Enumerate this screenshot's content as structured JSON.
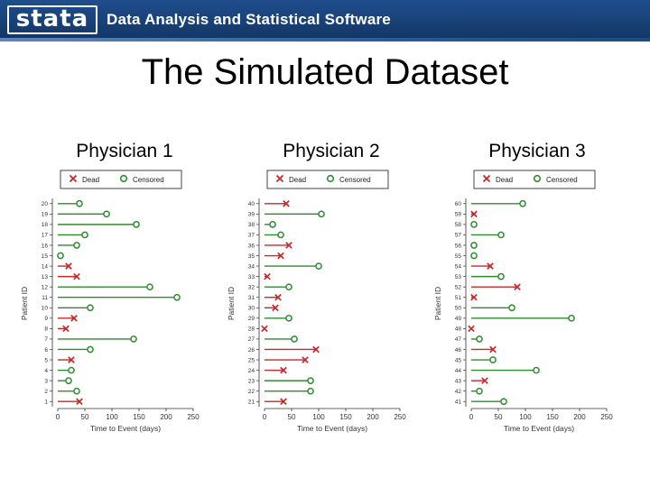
{
  "header": {
    "logo_text": "stata",
    "tagline": "Data Analysis and Statistical Software",
    "background": "#1f4e8c"
  },
  "slide": {
    "title": "The Simulated Dataset"
  },
  "colors": {
    "dead": "#c62828",
    "censored": "#2e8b2e"
  },
  "chart_data": [
    {
      "type": "scatter",
      "title": "Physician 1",
      "xlabel": "Time to Event (days)",
      "ylabel": "Patient ID",
      "xlim": [
        0,
        250
      ],
      "xticks": [
        0,
        50,
        100,
        150,
        200,
        250
      ],
      "legend": [
        "Dead",
        "Censored"
      ],
      "legend_position": "top",
      "patients": [
        {
          "id": "20",
          "time": 40,
          "status": "Censored"
        },
        {
          "id": "19",
          "time": 90,
          "status": "Censored"
        },
        {
          "id": "18",
          "time": 145,
          "status": "Censored"
        },
        {
          "id": "17",
          "time": 50,
          "status": "Censored"
        },
        {
          "id": "16",
          "time": 35,
          "status": "Censored"
        },
        {
          "id": "15",
          "time": 5,
          "status": "Censored"
        },
        {
          "id": "14",
          "time": 20,
          "status": "Dead"
        },
        {
          "id": "13",
          "time": 35,
          "status": "Dead"
        },
        {
          "id": "12",
          "time": 170,
          "status": "Censored"
        },
        {
          "id": "11",
          "time": 220,
          "status": "Censored"
        },
        {
          "id": "10",
          "time": 60,
          "status": "Censored"
        },
        {
          "id": "9",
          "time": 30,
          "status": "Dead"
        },
        {
          "id": "8",
          "time": 15,
          "status": "Dead"
        },
        {
          "id": "7",
          "time": 140,
          "status": "Censored"
        },
        {
          "id": "6",
          "time": 60,
          "status": "Censored"
        },
        {
          "id": "5",
          "time": 25,
          "status": "Dead"
        },
        {
          "id": "4",
          "time": 25,
          "status": "Censored"
        },
        {
          "id": "3",
          "time": 20,
          "status": "Censored"
        },
        {
          "id": "2",
          "time": 35,
          "status": "Censored"
        },
        {
          "id": "1",
          "time": 40,
          "status": "Dead"
        }
      ]
    },
    {
      "type": "scatter",
      "title": "Physician 2",
      "xlabel": "Time to Event (days)",
      "ylabel": "Patient ID",
      "xlim": [
        0,
        250
      ],
      "xticks": [
        0,
        50,
        100,
        150,
        200,
        250
      ],
      "legend": [
        "Dead",
        "Censored"
      ],
      "legend_position": "top",
      "patients": [
        {
          "id": "40",
          "time": 40,
          "status": "Dead"
        },
        {
          "id": "39",
          "time": 105,
          "status": "Censored"
        },
        {
          "id": "38",
          "time": 15,
          "status": "Censored"
        },
        {
          "id": "37",
          "time": 30,
          "status": "Censored"
        },
        {
          "id": "36",
          "time": 45,
          "status": "Dead"
        },
        {
          "id": "35",
          "time": 30,
          "status": "Dead"
        },
        {
          "id": "34",
          "time": 100,
          "status": "Censored"
        },
        {
          "id": "33",
          "time": 5,
          "status": "Dead"
        },
        {
          "id": "32",
          "time": 45,
          "status": "Censored"
        },
        {
          "id": "31",
          "time": 25,
          "status": "Dead"
        },
        {
          "id": "30",
          "time": 20,
          "status": "Dead"
        },
        {
          "id": "29",
          "time": 45,
          "status": "Censored"
        },
        {
          "id": "28",
          "time": 0,
          "status": "Dead"
        },
        {
          "id": "27",
          "time": 55,
          "status": "Censored"
        },
        {
          "id": "26",
          "time": 95,
          "status": "Dead"
        },
        {
          "id": "25",
          "time": 75,
          "status": "Dead"
        },
        {
          "id": "24",
          "time": 35,
          "status": "Dead"
        },
        {
          "id": "23",
          "time": 85,
          "status": "Censored"
        },
        {
          "id": "22",
          "time": 85,
          "status": "Censored"
        },
        {
          "id": "21",
          "time": 35,
          "status": "Dead"
        }
      ]
    },
    {
      "type": "scatter",
      "title": "Physician 3",
      "xlabel": "Time to Event (days)",
      "ylabel": "Patient ID",
      "xlim": [
        0,
        250
      ],
      "xticks": [
        0,
        50,
        100,
        150,
        200,
        250
      ],
      "legend": [
        "Dead",
        "Censored"
      ],
      "legend_position": "top",
      "patients": [
        {
          "id": "60",
          "time": 95,
          "status": "Censored"
        },
        {
          "id": "59",
          "time": 5,
          "status": "Dead"
        },
        {
          "id": "58",
          "time": 5,
          "status": "Censored"
        },
        {
          "id": "57",
          "time": 55,
          "status": "Censored"
        },
        {
          "id": "56",
          "time": 5,
          "status": "Censored"
        },
        {
          "id": "55",
          "time": 5,
          "status": "Censored"
        },
        {
          "id": "54",
          "time": 35,
          "status": "Dead"
        },
        {
          "id": "53",
          "time": 55,
          "status": "Censored"
        },
        {
          "id": "52",
          "time": 85,
          "status": "Dead"
        },
        {
          "id": "51",
          "time": 5,
          "status": "Dead"
        },
        {
          "id": "50",
          "time": 75,
          "status": "Censored"
        },
        {
          "id": "49",
          "time": 185,
          "status": "Censored"
        },
        {
          "id": "48",
          "time": 0,
          "status": "Dead"
        },
        {
          "id": "47",
          "time": 15,
          "status": "Censored"
        },
        {
          "id": "46",
          "time": 40,
          "status": "Dead"
        },
        {
          "id": "45",
          "time": 40,
          "status": "Censored"
        },
        {
          "id": "44",
          "time": 120,
          "status": "Censored"
        },
        {
          "id": "43",
          "time": 25,
          "status": "Dead"
        },
        {
          "id": "42",
          "time": 15,
          "status": "Censored"
        },
        {
          "id": "41",
          "time": 60,
          "status": "Censored"
        }
      ]
    }
  ]
}
